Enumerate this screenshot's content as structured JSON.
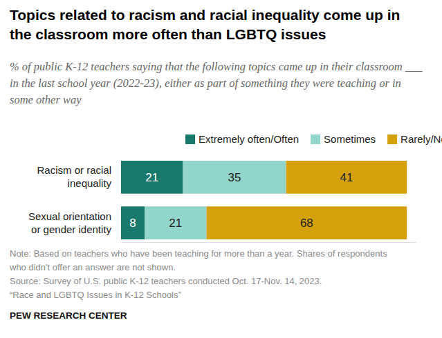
{
  "chart_data": {
    "type": "bar",
    "orientation": "horizontal",
    "stacked": true,
    "data_labels": true,
    "tick_labels": "y",
    "title": "Topics related to racism and racial inequality come up in the classroom more often than LGBTQ issues",
    "subtitle": "% of public K-12 teachers saying that the following topics came up in their classroom ___ in the last school year (2022-23), either as part of something they were teaching or in some other way",
    "categories": [
      "Racism or racial inequality",
      "Sexual orientation or gender identity"
    ],
    "series": [
      {
        "name": "Extremely often/Often",
        "color": "#18796c",
        "values": [
          21,
          8
        ]
      },
      {
        "name": "Sometimes",
        "color": "#92d5ca",
        "values": [
          35,
          21
        ]
      },
      {
        "name": "Rarely/Never",
        "color": "#d4a10b",
        "values": [
          41,
          68
        ]
      }
    ],
    "xlim": [
      0,
      100
    ],
    "note": "Note: Based on teachers who have been teaching for more than a year. Shares of respondents who didn't offer an answer are not shown.",
    "source": [
      "Source: Survey of U.S. public K-12 teachers conducted Oct. 17-Nov. 14, 2023.",
      "“Race and LGBTQ Issues in K-12 Schools”"
    ],
    "credit": "PEW RESEARCH CENTER"
  }
}
